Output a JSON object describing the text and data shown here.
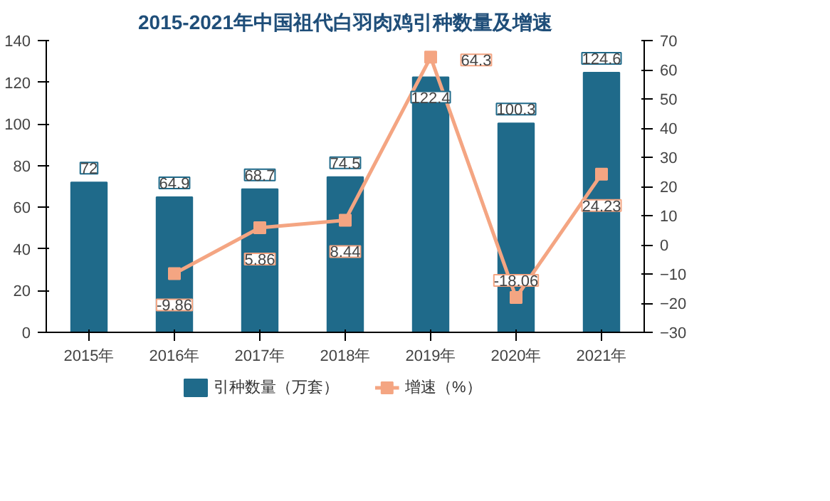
{
  "chart_data": {
    "type": "bar",
    "title": "2015-2021年中国祖代白羽肉鸡引种数量及增速",
    "categories": [
      "2015年",
      "2016年",
      "2017年",
      "2018年",
      "2019年",
      "2020年",
      "2021年"
    ],
    "series": [
      {
        "name": "引种数量（万套）",
        "color": "#1f6a8a",
        "values": [
          72,
          64.9,
          68.7,
          74.5,
          122.4,
          100.3,
          124.6
        ]
      },
      {
        "name": "增速（%）",
        "type": "line",
        "axis": "y2",
        "color": "#f4a582",
        "marker": "square",
        "values": [
          null,
          -9.86,
          5.86,
          8.44,
          64.3,
          -18.06,
          24.23
        ]
      }
    ],
    "ylim": [
      0,
      140
    ],
    "yticks": [
      0,
      20,
      40,
      60,
      80,
      100,
      120,
      140
    ],
    "y2lim": [
      -30,
      70
    ],
    "y2ticks": [
      -30,
      -20,
      -10,
      0,
      10,
      20,
      30,
      40,
      50,
      60,
      70
    ],
    "data_labels": true,
    "grid": false,
    "legend": "bottom"
  }
}
